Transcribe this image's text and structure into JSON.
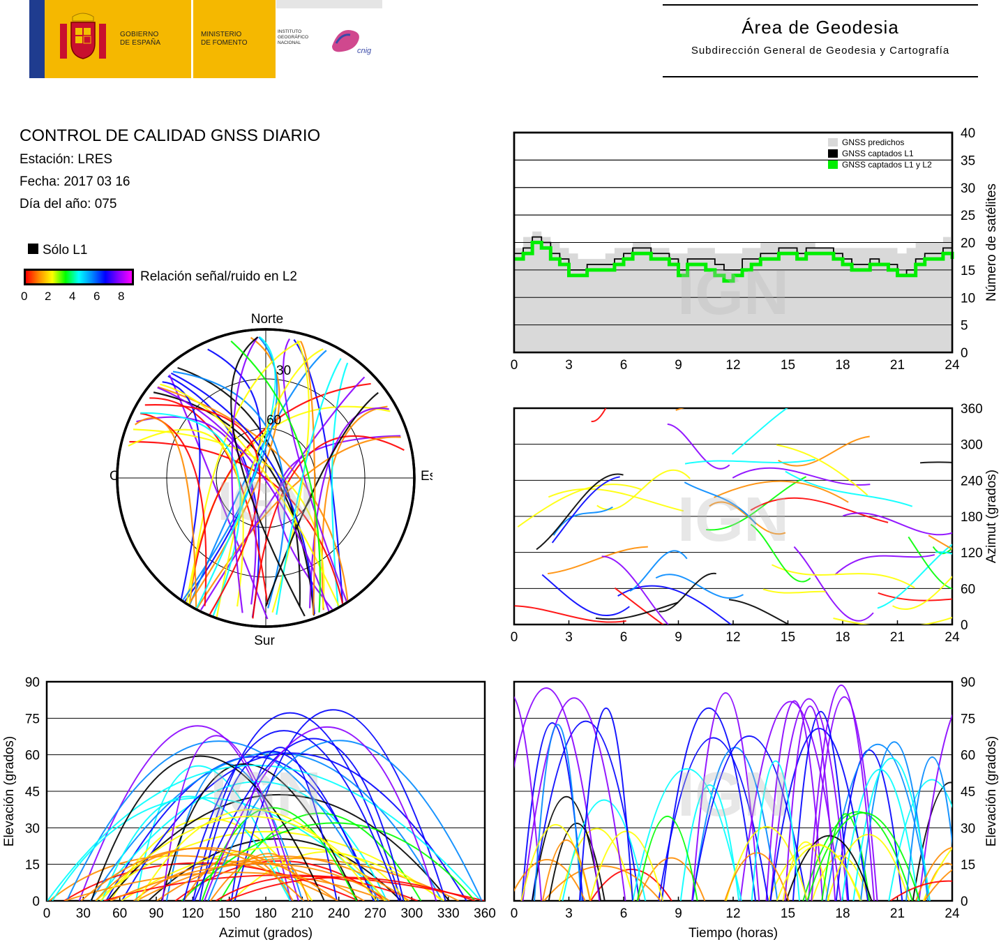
{
  "header": {
    "gov_text": "GOBIERNO\nDE ESPAÑA",
    "ministry_text": "MINISTERIO\nDE FOMENTO",
    "institute_text": "INSTITUTO\nGEOGRÁFICO\nNACIONAL",
    "cnig_text": "cnig",
    "area_title": "Área de Geodesia",
    "area_subtitle": "Subdirección General de Geodesia y Cartografía"
  },
  "report": {
    "title": "CONTROL DE CALIDAD GNSS DIARIO",
    "station": "Estación: LRES",
    "date": "Fecha: 2017 03 16",
    "doy": "Día del año: 075"
  },
  "legend": {
    "l1_only": "Sólo L1",
    "snr_label": "Relación señal/ruido en L2",
    "snr_ticks": [
      "0",
      "2",
      "4",
      "6",
      "8"
    ],
    "colorscale": [
      "#ff0000",
      "#ff8c00",
      "#ffff00",
      "#00ff00",
      "#00ffff",
      "#0088ff",
      "#0000ff",
      "#8800ff",
      "#ff00ff"
    ]
  },
  "watermark": "IGN",
  "chart_data": [
    {
      "type": "polar",
      "id": "skyplot",
      "labels": {
        "north": "Norte",
        "south": "Sur",
        "east": "Este",
        "west": "Oeste"
      },
      "elevation_rings": [
        "30",
        "60"
      ]
    },
    {
      "type": "area",
      "id": "satellite-count",
      "xlabel": "",
      "ylabel": "Número de satélites",
      "xlim": [
        0,
        24
      ],
      "ylim": [
        0,
        40
      ],
      "xticks": [
        0,
        3,
        6,
        9,
        12,
        15,
        18,
        21,
        24
      ],
      "yticks": [
        0,
        5,
        10,
        15,
        20,
        25,
        30,
        35,
        40
      ],
      "legend_position": "top-right",
      "series": [
        {
          "name": "GNSS predichos",
          "color": "#d9d9d9",
          "x": [
            0,
            0.5,
            1,
            1.5,
            2,
            2.5,
            3,
            3.5,
            4,
            4.5,
            5,
            5.5,
            6,
            6.5,
            7,
            7.5,
            8,
            8.5,
            9,
            9.5,
            10,
            10.5,
            11,
            11.5,
            12,
            12.5,
            13,
            13.5,
            14,
            14.5,
            15,
            15.5,
            16,
            16.5,
            17,
            17.5,
            18,
            18.5,
            19,
            19.5,
            20,
            20.5,
            21,
            21.5,
            22,
            22.5,
            23,
            23.5,
            24
          ],
          "values": [
            19,
            21,
            22,
            21,
            20,
            19,
            18,
            17,
            17,
            17,
            18,
            19,
            19,
            20,
            20,
            19,
            19,
            18,
            18,
            19,
            19,
            19,
            18,
            18,
            18,
            19,
            19,
            20,
            20,
            20,
            20,
            20,
            20,
            19,
            19,
            19,
            19,
            19,
            19,
            19,
            19,
            19,
            18,
            19,
            20,
            20,
            20,
            21,
            21
          ]
        },
        {
          "name": "GNSS captados L1",
          "color": "#000000",
          "x": [
            0,
            0.5,
            1,
            1.5,
            2,
            2.5,
            3,
            3.5,
            4,
            4.5,
            5,
            5.5,
            6,
            6.5,
            7,
            7.5,
            8,
            8.5,
            9,
            9.5,
            10,
            10.5,
            11,
            11.5,
            12,
            12.5,
            13,
            13.5,
            14,
            14.5,
            15,
            15.5,
            16,
            16.5,
            17,
            17.5,
            18,
            18.5,
            19,
            19.5,
            20,
            20.5,
            21,
            21.5,
            22,
            22.5,
            23,
            23.5,
            24
          ],
          "values": [
            18,
            19,
            21,
            20,
            18,
            17,
            15,
            15,
            16,
            16,
            16,
            17,
            18,
            19,
            19,
            18,
            18,
            17,
            15,
            17,
            17,
            17,
            16,
            15,
            15,
            17,
            17,
            18,
            18,
            19,
            19,
            18,
            19,
            19,
            19,
            18,
            17,
            16,
            16,
            17,
            16,
            16,
            14,
            15,
            17,
            18,
            18,
            19,
            19
          ]
        },
        {
          "name": "GNSS captados L1 y L2",
          "color": "#00ee00",
          "x": [
            0,
            0.5,
            1,
            1.5,
            2,
            2.5,
            3,
            3.5,
            4,
            4.5,
            5,
            5.5,
            6,
            6.5,
            7,
            7.5,
            8,
            8.5,
            9,
            9.5,
            10,
            10.5,
            11,
            11.5,
            12,
            12.5,
            13,
            13.5,
            14,
            14.5,
            15,
            15.5,
            16,
            16.5,
            17,
            17.5,
            18,
            18.5,
            19,
            19.5,
            20,
            20.5,
            21,
            21.5,
            22,
            22.5,
            23,
            23.5,
            24
          ],
          "values": [
            17,
            18,
            20,
            19,
            17,
            16,
            14,
            14,
            15,
            15,
            15,
            16,
            17,
            18,
            18,
            17,
            17,
            16,
            14,
            16,
            16,
            15,
            14,
            13,
            14,
            15,
            16,
            17,
            17,
            18,
            18,
            17,
            18,
            18,
            18,
            17,
            16,
            15,
            15,
            16,
            16,
            15,
            14,
            14,
            16,
            17,
            17,
            18,
            17
          ]
        }
      ]
    },
    {
      "type": "scatter",
      "id": "azimuth-vs-time",
      "xlabel": "",
      "ylabel": "Azimut (grados)",
      "xlim": [
        0,
        24
      ],
      "ylim": [
        0,
        360
      ],
      "xticks": [
        0,
        3,
        6,
        9,
        12,
        15,
        18,
        21,
        24
      ],
      "yticks": [
        0,
        60,
        120,
        180,
        240,
        300,
        360
      ]
    },
    {
      "type": "scatter",
      "id": "elevation-vs-azimuth",
      "xlabel": "Azimut (grados)",
      "ylabel": "Elevación (grados)",
      "xlim": [
        0,
        360
      ],
      "ylim": [
        0,
        90
      ],
      "xticks": [
        0,
        30,
        60,
        90,
        120,
        150,
        180,
        210,
        240,
        270,
        300,
        330,
        360
      ],
      "yticks": [
        0,
        15,
        30,
        45,
        60,
        75,
        90
      ]
    },
    {
      "type": "line",
      "id": "elevation-vs-time",
      "xlabel": "Tiempo (horas)",
      "ylabel": "Elevación (grados)",
      "xlim": [
        0,
        24
      ],
      "ylim": [
        0,
        90
      ],
      "xticks": [
        0,
        3,
        6,
        9,
        12,
        15,
        18,
        21,
        24
      ],
      "yticks": [
        0,
        15,
        30,
        45,
        60,
        75,
        90
      ]
    }
  ]
}
